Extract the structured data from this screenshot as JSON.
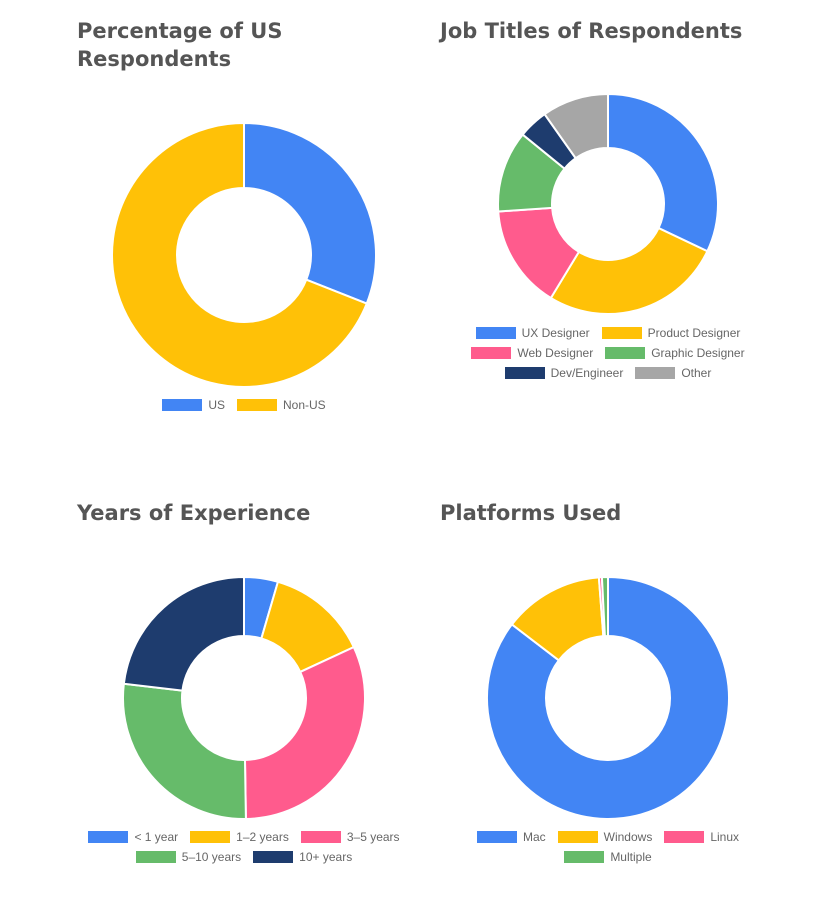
{
  "chart_data": [
    {
      "type": "pie",
      "title": "Percentage of US Respondents",
      "categories": [
        "US",
        "Non-US"
      ],
      "values": [
        31,
        69
      ],
      "colors": [
        "#4285f4",
        "#ffc107"
      ]
    },
    {
      "type": "pie",
      "title": "Job Titles of Respondents",
      "categories": [
        "UX Designer",
        "Product Designer",
        "Web Designer",
        "Graphic Designer",
        "Dev/Engineer",
        "Other"
      ],
      "values": [
        29.5,
        24.5,
        14,
        11,
        4,
        9
      ],
      "colors": [
        "#4285f4",
        "#ffc107",
        "#ff5b8d",
        "#66bb6a",
        "#1e3c6e",
        "#a6a6a6"
      ]
    },
    {
      "type": "pie",
      "title": "Years of Experience",
      "categories": [
        "< 1 year",
        "1–2 years",
        "3–5 years",
        "5–10 years",
        "10+ years"
      ],
      "values": [
        4.5,
        13.5,
        31.5,
        27,
        23
      ],
      "colors": [
        "#4285f4",
        "#ffc107",
        "#ff5b8d",
        "#66bb6a",
        "#1e3c6e"
      ]
    },
    {
      "type": "pie",
      "title": "Platforms Used",
      "categories": [
        "Mac",
        "Windows",
        "Linux",
        "Multiple"
      ],
      "values": [
        85.4,
        13.4,
        0.4,
        0.8
      ],
      "colors": [
        "#4285f4",
        "#ffc107",
        "#ff5b8d",
        "#66bb6a"
      ]
    }
  ]
}
